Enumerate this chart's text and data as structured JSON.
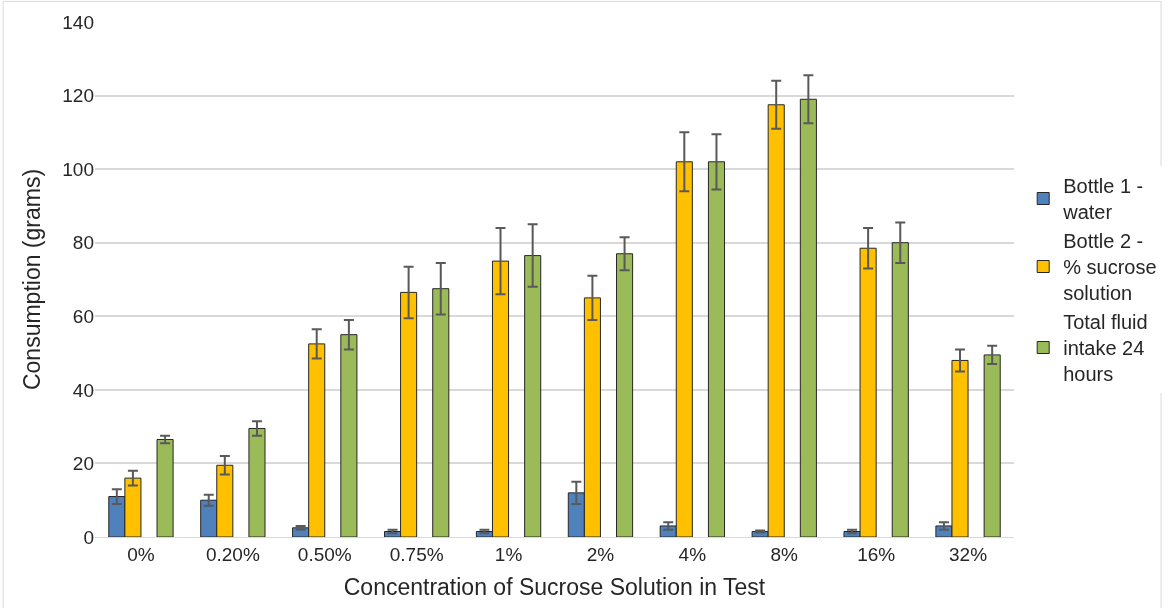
{
  "chart_data": {
    "type": "bar",
    "xlabel": "Concentration of Sucrose Solution in Test",
    "ylabel": "Consumption (grams)",
    "categories": [
      "0%",
      "0.20%",
      "0.50%",
      "0.75%",
      "1%",
      "2%",
      "4%",
      "8%",
      "16%",
      "32%"
    ],
    "series": [
      {
        "name": "Bottle 1 - water",
        "color": "#4f81bd",
        "values": [
          11,
          10,
          2.5,
          1.5,
          1.5,
          12,
          3,
          1.5,
          1.5,
          3
        ],
        "errors": [
          2,
          1.5,
          0.5,
          0.5,
          0.5,
          3,
          1,
          0.3,
          0.5,
          1
        ]
      },
      {
        "name": "Bottle 2 - % sucrose solution",
        "color": "#ffc000",
        "values": [
          16,
          19.5,
          52.5,
          66.5,
          75,
          65,
          102,
          117.5,
          78.5,
          48
        ],
        "errors": [
          2,
          2.5,
          4,
          7,
          9,
          6,
          8,
          6.5,
          5.5,
          3
        ]
      },
      {
        "name": "Total fluid intake 24 hours",
        "color": "#9bbb59",
        "values": [
          26.5,
          29.5,
          55,
          67.5,
          76.5,
          77,
          102,
          119,
          80,
          49.5
        ],
        "errors": [
          1,
          2,
          4,
          7,
          8.5,
          4.5,
          7.5,
          6.5,
          5.5,
          2.5
        ]
      }
    ],
    "ylim": [
      0,
      140
    ],
    "yticks": [
      0,
      20,
      40,
      60,
      80,
      100,
      120,
      140
    ],
    "grid": "y",
    "legend": "right"
  }
}
